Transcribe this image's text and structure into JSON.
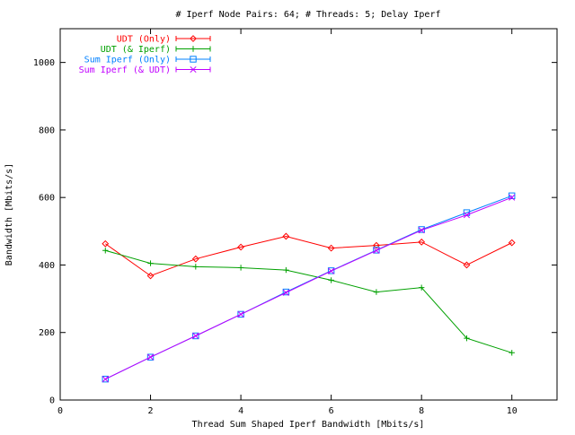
{
  "chart_data": {
    "type": "line",
    "title": "# Iperf Node Pairs: 64; # Threads: 5; Delay Iperf",
    "xlabel": "Thread Sum Shaped Iperf Bandwidth [Mbits/s]",
    "ylabel": "Bandwidth [Mbits/s]",
    "xlim": [
      0,
      11
    ],
    "ylim": [
      0,
      1100
    ],
    "xticks": [
      0,
      2,
      4,
      6,
      8,
      10
    ],
    "yticks": [
      0,
      200,
      400,
      600,
      800,
      1000
    ],
    "grid": false,
    "legend_position": "top-left",
    "x": [
      1,
      2,
      3,
      4,
      5,
      6,
      7,
      8,
      9,
      10
    ],
    "series": [
      {
        "name": "UDT (Only)",
        "color": "#ff0000",
        "marker": "diamond",
        "values": [
          463,
          368,
          418,
          453,
          485,
          450,
          458,
          468,
          400,
          466
        ]
      },
      {
        "name": "UDT (& Iperf)",
        "color": "#00a000",
        "marker": "plus",
        "values": [
          443,
          405,
          395,
          392,
          385,
          355,
          320,
          333,
          183,
          140
        ]
      },
      {
        "name": "Sum Iperf (Only)",
        "color": "#0080ff",
        "marker": "square",
        "values": [
          62,
          127,
          190,
          254,
          320,
          383,
          444,
          505,
          555,
          605
        ]
      },
      {
        "name": "Sum Iperf (& UDT)",
        "color": "#c000ff",
        "marker": "x",
        "values": [
          62,
          127,
          190,
          254,
          318,
          382,
          443,
          503,
          548,
          600
        ]
      }
    ]
  }
}
